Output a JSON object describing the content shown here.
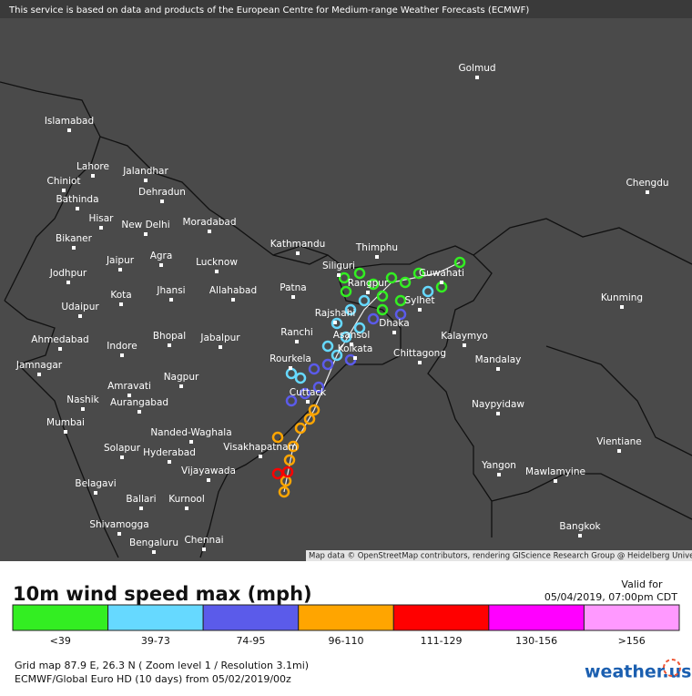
{
  "banner": "This service is based on data and products of the European Centre for Medium-range Weather Forecasts (ECMWF)",
  "map": {
    "cities": [
      "Golmud",
      "Islamabad",
      "Lahore",
      "Jalandhar",
      "Chiniot",
      "Bathinda",
      "Dehradun",
      "Chengdu",
      "Hisar",
      "New Delhi",
      "Moradabad",
      "Bikaner",
      "Kathmandu",
      "Thimphu",
      "Agra",
      "Jaipur",
      "Lucknow",
      "Siliguri",
      "Guwahati",
      "Jodhpur",
      "Rangpur",
      "Kunming",
      "Kota",
      "Jhansi",
      "Allahabad",
      "Patna",
      "Sylhet",
      "Udaipur",
      "Rajshahi",
      "Dhaka",
      "Ranchi",
      "Asansol",
      "Kalaymyo",
      "Ahmedabad",
      "Bhopal",
      "Jabalpur",
      "Indore",
      "Kolkata",
      "Chittagong",
      "Mandalay",
      "Jamnagar",
      "Rourkela",
      "Nagpur",
      "Amravati",
      "Cuttack",
      "Nashik",
      "Aurangabad",
      "Naypyidaw",
      "Mumbai",
      "Nanded-Waghala",
      "Vientiane",
      "Solapur",
      "Visakhapatnam",
      "Hyderabad",
      "Yangon",
      "Mawlamyine",
      "Vijayawada",
      "Belagavi",
      "Ballari",
      "Kurnool",
      "Shivamogga",
      "Bangkok",
      "Bengaluru",
      "Chennai"
    ],
    "attribution": "Map data © OpenStreetMap contributors, rendering GIScience Research Group @ Heidelberg University"
  },
  "panel": {
    "title": "10m wind speed max (mph)",
    "valid_label": "Valid for",
    "valid_time": "05/04/2019, 07:00pm CDT",
    "legend": [
      {
        "label": "<39",
        "color": "#33ee22"
      },
      {
        "label": "39-73",
        "color": "#66d9ff"
      },
      {
        "label": "74-95",
        "color": "#5b5bea"
      },
      {
        "label": "96-110",
        "color": "#ffa500"
      },
      {
        "label": "111-129",
        "color": "#ff0000"
      },
      {
        "label": "130-156",
        "color": "#ff00ff"
      },
      {
        "label": ">156",
        "color": "#ff99ff"
      }
    ],
    "grid_info": "Grid map 87.9 E, 26.3 N ( Zoom level 1 / Resolution 3.1mi)",
    "model_info": "ECMWF/Global Euro HD (10 days) from 05/02/2019/00z",
    "logo": "weather.us"
  }
}
